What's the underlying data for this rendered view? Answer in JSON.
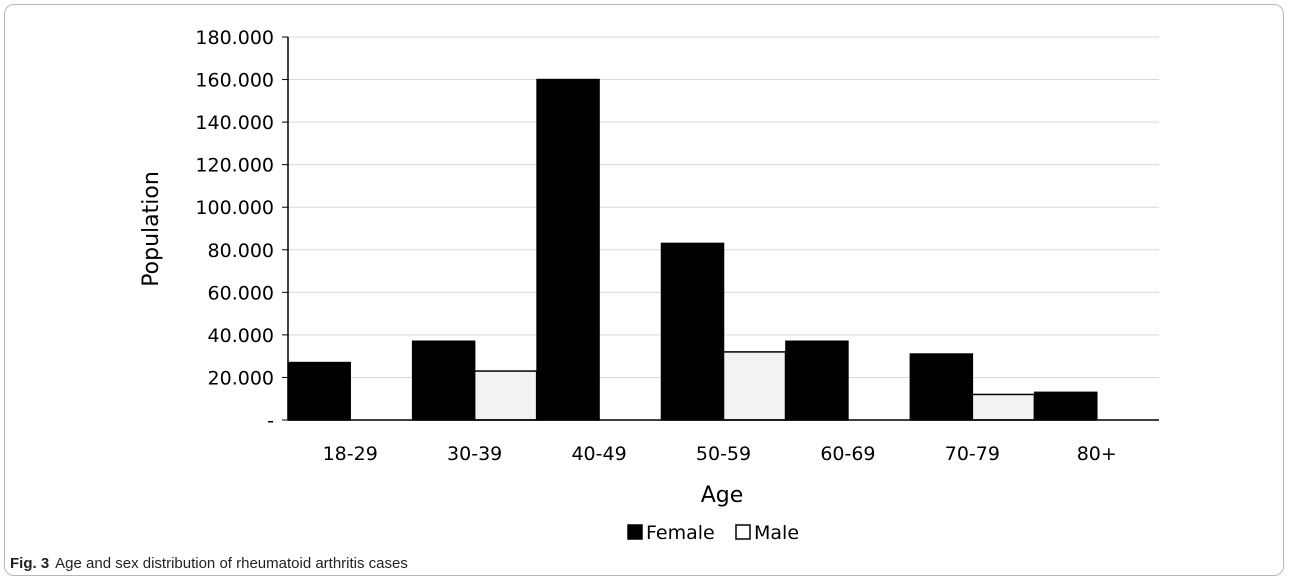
{
  "caption": {
    "label": "Fig. 3",
    "text": "Age and sex distribution of rheumatoid arthritis cases"
  },
  "chart_data": {
    "type": "bar",
    "xlabel": "Age",
    "ylabel": "Population",
    "categories": [
      "18-29",
      "30-39",
      "40-49",
      "50-59",
      "60-69",
      "70-79",
      "80+"
    ],
    "series": [
      {
        "name": "Female",
        "values": [
          27000,
          37000,
          160000,
          83000,
          37000,
          31000,
          13000
        ],
        "color": "#000000"
      },
      {
        "name": "Male",
        "values": [
          0,
          23000,
          0,
          32000,
          0,
          12000,
          0
        ],
        "color": "#f2f2f2"
      }
    ],
    "ylim": [
      0,
      180000
    ],
    "yticks": [
      0,
      20000,
      40000,
      60000,
      80000,
      100000,
      120000,
      140000,
      160000,
      180000
    ],
    "ytick_labels": [
      "-",
      "20.000",
      "40.000",
      "60.000",
      "80.000",
      "100.000",
      "120.000",
      "140.000",
      "160.000",
      "180.000"
    ],
    "grid": true,
    "legend_position": "bottom"
  }
}
